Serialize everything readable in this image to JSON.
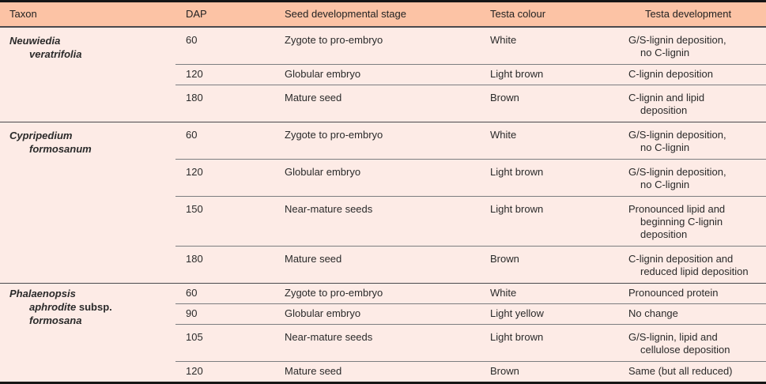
{
  "theme": {
    "header_bg": "#fcc3a5",
    "body_bg": "#fdebe6",
    "text": "#2a2a2a",
    "outer_border": "#161616",
    "group_line": "#4a4a4e",
    "row_line": "#7c7d80"
  },
  "table": {
    "columns": [
      {
        "key": "taxon",
        "label": "Taxon"
      },
      {
        "key": "dap",
        "label": "DAP"
      },
      {
        "key": "stage",
        "label": "Seed developmental stage"
      },
      {
        "key": "colour",
        "label": "Testa colour"
      },
      {
        "key": "development",
        "label": "Testa development"
      }
    ],
    "groups": [
      {
        "taxon_lines": [
          [
            {
              "text": "Neuwiedia",
              "italic": true
            }
          ],
          [
            {
              "text": "veratrifolia",
              "italic": true
            }
          ]
        ],
        "rows": [
          {
            "dap": "60",
            "stage": "Zygote to pro-embryo",
            "colour": "White",
            "development": "G/S-lignin deposition,\nno C-lignin"
          },
          {
            "dap": "120",
            "stage": "Globular embryo",
            "colour": "Light brown",
            "development": "C-lignin deposition"
          },
          {
            "dap": "180",
            "stage": "Mature seed",
            "colour": "Brown",
            "development": "C-lignin and lipid\ndeposition"
          }
        ]
      },
      {
        "taxon_lines": [
          [
            {
              "text": "Cypripedium",
              "italic": true
            }
          ],
          [
            {
              "text": "formosanum",
              "italic": true
            }
          ]
        ],
        "rows": [
          {
            "dap": "60",
            "stage": "Zygote to pro-embryo",
            "colour": "White",
            "development": "G/S-lignin deposition,\nno C-lignin"
          },
          {
            "dap": "120",
            "stage": "Globular embryo",
            "colour": "Light brown",
            "development": "G/S-lignin deposition,\nno C-lignin"
          },
          {
            "dap": "150",
            "stage": "Near-mature seeds",
            "colour": "Light brown",
            "development": "Pronounced lipid and\nbeginning C-lignin\ndeposition"
          },
          {
            "dap": "180",
            "stage": "Mature seed",
            "colour": "Brown",
            "development": "C-lignin deposition and\nreduced lipid deposition"
          }
        ]
      },
      {
        "taxon_lines": [
          [
            {
              "text": "Phalaenopsis",
              "italic": true
            }
          ],
          [
            {
              "text": "aphrodite",
              "italic": true
            },
            {
              "text": " subsp.",
              "italic": false
            }
          ],
          [
            {
              "text": "formosana",
              "italic": true
            }
          ]
        ],
        "rows": [
          {
            "dap": "60",
            "stage": "Zygote to pro-embryo",
            "colour": "White",
            "development": "Pronounced protein"
          },
          {
            "dap": "90",
            "stage": "Globular embryo",
            "colour": "Light yellow",
            "development": "No change"
          },
          {
            "dap": "105",
            "stage": "Near-mature seeds",
            "colour": "Light brown",
            "development": "G/S-lignin, lipid and\ncellulose deposition"
          },
          {
            "dap": "120",
            "stage": "Mature seed",
            "colour": "Brown",
            "development": "Same (but all reduced)"
          }
        ]
      }
    ]
  }
}
